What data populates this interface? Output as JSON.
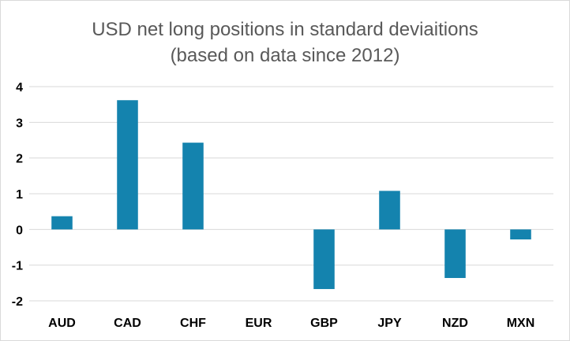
{
  "chart_data": {
    "type": "bar",
    "title": "USD net long positions in standard deviaitions",
    "subtitle": "(based on data since 2012)",
    "categories": [
      "AUD",
      "CAD",
      "CHF",
      "EUR",
      "GBP",
      "JPY",
      "NZD",
      "MXN"
    ],
    "values": [
      0.37,
      3.62,
      2.43,
      0,
      -1.67,
      1.08,
      -1.36,
      -0.28
    ],
    "xlabel": "",
    "ylabel": "",
    "ylim": [
      -2,
      4
    ],
    "yticks": [
      "-2",
      "-1",
      "0",
      "1",
      "2",
      "3",
      "4"
    ],
    "grid": true,
    "legend": "none",
    "bar_color": "#1483AE",
    "grid_color": "#D9D9D9"
  }
}
